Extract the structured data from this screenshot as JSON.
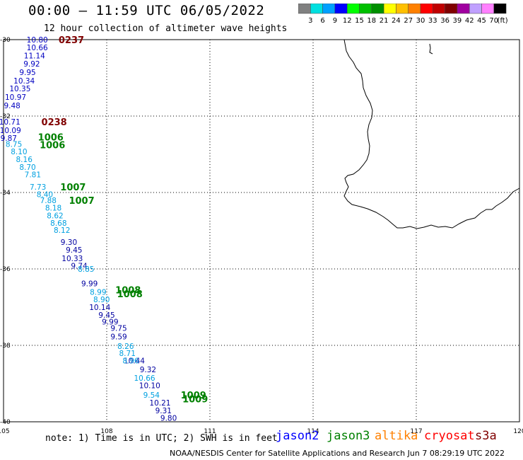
{
  "title": "00:00 — 11:59 UTC 06/05/2022",
  "subtitle": "12 hour collection of altimeter wave heights",
  "colorbar": {
    "unit": "(ft)",
    "colors": [
      "#808080",
      "#00e0e0",
      "#00a0ff",
      "#0000ff",
      "#00ff00",
      "#00c000",
      "#009000",
      "#ffff00",
      "#ffc000",
      "#ff8000",
      "#ff0000",
      "#c00000",
      "#800000",
      "#a000a0",
      "#c0a0ff",
      "#ff80ff",
      "#000000"
    ],
    "ticks": [
      "3",
      "6",
      "9",
      "12",
      "15",
      "18",
      "21",
      "24",
      "27",
      "30",
      "33",
      "36",
      "39",
      "42",
      "45",
      "70"
    ]
  },
  "axes": {
    "lon_ticks": [
      "105",
      "108",
      "111",
      "114",
      "117",
      "120"
    ],
    "lat_ticks": [
      "-30",
      "-32",
      "-34",
      "-36",
      "-38",
      "-40"
    ],
    "lon_range": [
      105,
      120
    ],
    "lat_range": [
      -40,
      -30
    ]
  },
  "tracks": [
    {
      "name": "jason2",
      "color": "#0000c0",
      "label_color": "#800000",
      "time_labels": [
        {
          "text": "0237",
          "lon": 106.6,
          "lat": -30.0
        },
        {
          "text": "0238",
          "lon": 106.1,
          "lat": -32.15
        }
      ],
      "points": [
        {
          "v": "10.80",
          "lon": 105.98,
          "lat": -30.0
        },
        {
          "v": "10.66",
          "lon": 105.98,
          "lat": -30.2
        },
        {
          "v": "11.14",
          "lon": 105.9,
          "lat": -30.42
        },
        {
          "v": "9.92",
          "lon": 105.82,
          "lat": -30.63
        },
        {
          "v": "9.95",
          "lon": 105.7,
          "lat": -30.85
        },
        {
          "v": "10.34",
          "lon": 105.6,
          "lat": -31.07
        },
        {
          "v": "10.35",
          "lon": 105.48,
          "lat": -31.28
        },
        {
          "v": "10.97",
          "lon": 105.35,
          "lat": -31.5
        },
        {
          "v": "9.48",
          "lon": 105.25,
          "lat": -31.72
        },
        {
          "v": "10.71",
          "lon": 105.18,
          "lat": -32.15
        },
        {
          "v": "10.09",
          "lon": 105.2,
          "lat": -32.37
        },
        {
          "v": "9.87",
          "lon": 105.15,
          "lat": -32.57
        }
      ]
    },
    {
      "name": "jason3",
      "color": "#0000a0",
      "label_color": "#008000",
      "time_labels": [
        {
          "text": "1006",
          "lon": 106.0,
          "lat": -32.55
        },
        {
          "text": "1006",
          "lon": 106.05,
          "lat": -32.75
        },
        {
          "text": "1007",
          "lon": 106.65,
          "lat": -33.85
        },
        {
          "text": "1007",
          "lon": 106.9,
          "lat": -34.2
        },
        {
          "text": "1008",
          "lon": 108.25,
          "lat": -36.55
        },
        {
          "text": "1008",
          "lon": 108.3,
          "lat": -36.65
        },
        {
          "text": "1009",
          "lon": 110.15,
          "lat": -39.3
        },
        {
          "text": "1009",
          "lon": 110.2,
          "lat": -39.4
        }
      ],
      "points": [
        {
          "v": "9.30",
          "lon": 106.9,
          "lat": -35.3
        },
        {
          "v": "9.45",
          "lon": 107.05,
          "lat": -35.5
        },
        {
          "v": "10.33",
          "lon": 107.0,
          "lat": -35.72
        },
        {
          "v": "9.74",
          "lon": 107.2,
          "lat": -35.92
        },
        {
          "v": "9.99",
          "lon": 107.5,
          "lat": -36.38
        },
        {
          "v": "10.14",
          "lon": 107.8,
          "lat": -37.0
        },
        {
          "v": "9.45",
          "lon": 108.0,
          "lat": -37.2
        },
        {
          "v": "9.99",
          "lon": 108.1,
          "lat": -37.38
        },
        {
          "v": "9.75",
          "lon": 108.35,
          "lat": -37.55
        },
        {
          "v": "9.59",
          "lon": 108.35,
          "lat": -37.77
        },
        {
          "v": "10.44",
          "lon": 108.8,
          "lat": -38.4
        },
        {
          "v": "9.32",
          "lon": 109.2,
          "lat": -38.63
        },
        {
          "v": "10.10",
          "lon": 109.25,
          "lat": -39.05
        },
        {
          "v": "10.21",
          "lon": 109.55,
          "lat": -39.5
        },
        {
          "v": "9.31",
          "lon": 109.65,
          "lat": -39.7
        },
        {
          "v": "9.80",
          "lon": 109.8,
          "lat": -39.9
        }
      ]
    },
    {
      "name": "cyan",
      "color": "#00a0e0",
      "label_color": "#00a0e0",
      "time_labels": [],
      "points": [
        {
          "v": "8.75",
          "lon": 105.3,
          "lat": -32.73
        },
        {
          "v": "8.10",
          "lon": 105.45,
          "lat": -32.93
        },
        {
          "v": "8.16",
          "lon": 105.6,
          "lat": -33.13
        },
        {
          "v": "8.70",
          "lon": 105.7,
          "lat": -33.33
        },
        {
          "v": "7.81",
          "lon": 105.85,
          "lat": -33.53
        },
        {
          "v": "7.73",
          "lon": 106.0,
          "lat": -33.85
        },
        {
          "v": "8.40",
          "lon": 106.2,
          "lat": -34.05
        },
        {
          "v": "7.88",
          "lon": 106.3,
          "lat": -34.2
        },
        {
          "v": "8.18",
          "lon": 106.45,
          "lat": -34.4
        },
        {
          "v": "8.62",
          "lon": 106.5,
          "lat": -34.6
        },
        {
          "v": "8.68",
          "lon": 106.6,
          "lat": -34.8
        },
        {
          "v": "8.12",
          "lon": 106.7,
          "lat": -34.98
        },
        {
          "v": "8.85",
          "lon": 107.4,
          "lat": -36.0
        },
        {
          "v": "8.99",
          "lon": 107.75,
          "lat": -36.6
        },
        {
          "v": "8.90",
          "lon": 107.85,
          "lat": -36.8
        },
        {
          "v": "8.26",
          "lon": 108.55,
          "lat": -38.02
        },
        {
          "v": "8.71",
          "lon": 108.6,
          "lat": -38.2
        },
        {
          "v": "8.96",
          "lon": 108.7,
          "lat": -38.4
        },
        {
          "v": "10.66",
          "lon": 109.1,
          "lat": -38.85
        },
        {
          "v": "9.54",
          "lon": 109.3,
          "lat": -39.3
        }
      ]
    }
  ],
  "legend": {
    "note": "note: 1) Time is in UTC; 2) SWH is in feet",
    "items": [
      {
        "label": "jason2",
        "color": "#0000ff"
      },
      {
        "label": "jason3",
        "color": "#008000"
      },
      {
        "label": "altika",
        "color": "#ff8000"
      },
      {
        "label": "cryosat",
        "color": "#ff0000"
      },
      {
        "label": "s3a",
        "color": "#800000"
      }
    ]
  },
  "footer": "NOAA/NESDIS Center for Satellite Applications and Research   Jun  7 08:29:19 UTC 2022"
}
